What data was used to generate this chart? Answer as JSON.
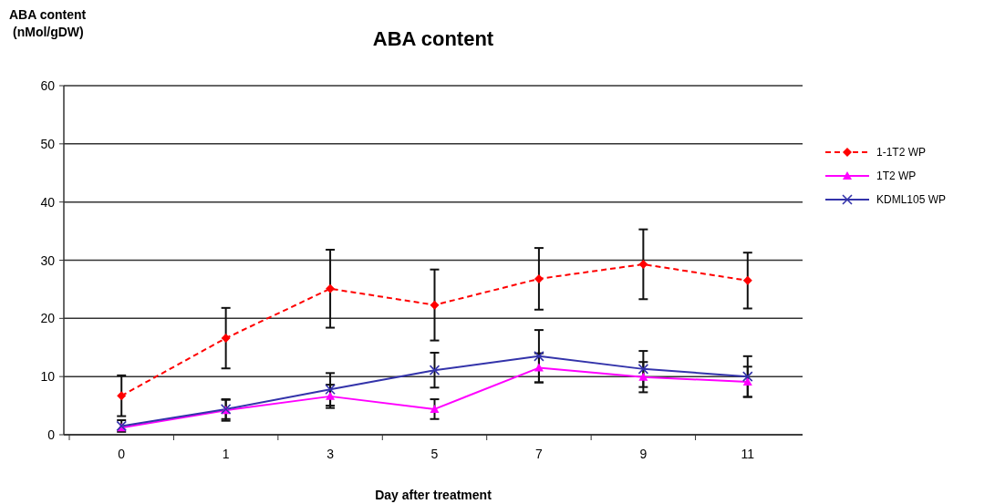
{
  "chart_data": {
    "type": "line",
    "title": "ABA content",
    "ylabel": "ABA content\n(nMol/gDW)",
    "xlabel": "Day after treatment",
    "categories": [
      "0",
      "1",
      "3",
      "5",
      "7",
      "9",
      "11"
    ],
    "ylim": [
      0,
      60
    ],
    "yticks": [
      0,
      10,
      20,
      30,
      40,
      50,
      60
    ],
    "grid": "y",
    "legend": "right",
    "series": [
      {
        "name": "1-1T2 WP",
        "color": "#ff0000",
        "marker": "diamond",
        "line_style": "dashed",
        "values": [
          6.7,
          16.6,
          25.1,
          22.3,
          26.8,
          29.3,
          26.5
        ],
        "errors": [
          3.5,
          5.2,
          6.7,
          6.1,
          5.3,
          6.0,
          4.8
        ]
      },
      {
        "name": "1T2 WP",
        "color": "#ff00ff",
        "marker": "triangle",
        "line_style": "solid",
        "values": [
          1.2,
          4.2,
          6.6,
          4.4,
          11.5,
          9.9,
          9.1
        ],
        "errors": [
          null,
          1.8,
          2.0,
          1.7,
          2.5,
          2.6,
          2.6
        ]
      },
      {
        "name": "KDML105 WP",
        "color": "#3333aa",
        "marker": "cross",
        "line_style": "solid",
        "values": [
          1.5,
          4.4,
          7.8,
          11.1,
          13.5,
          11.3,
          10.0
        ],
        "errors": [
          1.0,
          1.7,
          2.8,
          3.0,
          4.5,
          3.1,
          3.5
        ]
      }
    ]
  }
}
